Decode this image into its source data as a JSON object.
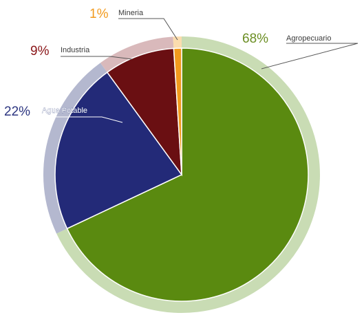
{
  "chart_data": {
    "type": "pie",
    "title": "",
    "legend": "none",
    "slices": [
      {
        "label": "Agropecuario",
        "percent_label": "68%",
        "value": 68,
        "color": "#5a8a10",
        "ring_color": "#c9dcb4",
        "pct_color": "#6b8e23"
      },
      {
        "label": "Agua Potable",
        "percent_label": "22%",
        "value": 22,
        "color": "#232a78",
        "ring_color": "#b4b8cf",
        "pct_color": "#2c3580"
      },
      {
        "label": "Industria",
        "percent_label": "9%",
        "value": 9,
        "color": "#6a0f12",
        "ring_color": "#d9b9bb",
        "pct_color": "#8a1518"
      },
      {
        "label": "Mineria",
        "percent_label": "1%",
        "value": 1,
        "color": "#f29a1d",
        "ring_color": "#fbdcae",
        "pct_color": "#f29a1d"
      }
    ]
  }
}
